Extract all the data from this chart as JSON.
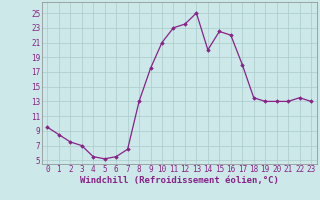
{
  "x": [
    0,
    1,
    2,
    3,
    4,
    5,
    6,
    7,
    8,
    9,
    10,
    11,
    12,
    13,
    14,
    15,
    16,
    17,
    18,
    19,
    20,
    21,
    22,
    23
  ],
  "y": [
    9.5,
    8.5,
    7.5,
    7.0,
    5.5,
    5.2,
    5.5,
    6.5,
    13.0,
    17.5,
    21.0,
    23.0,
    23.5,
    25.0,
    20.0,
    22.5,
    22.0,
    18.0,
    13.5,
    13.0,
    13.0,
    13.0,
    13.5,
    13.0
  ],
  "line_color": "#882288",
  "marker": "D",
  "markersize": 1.8,
  "linewidth": 0.9,
  "xlabel": "Windchill (Refroidissement éolien,°C)",
  "xlabel_fontsize": 6.5,
  "yticks": [
    5,
    7,
    9,
    11,
    13,
    15,
    17,
    19,
    21,
    23,
    25
  ],
  "xticks": [
    0,
    1,
    2,
    3,
    4,
    5,
    6,
    7,
    8,
    9,
    10,
    11,
    12,
    13,
    14,
    15,
    16,
    17,
    18,
    19,
    20,
    21,
    22,
    23
  ],
  "ylim": [
    4.5,
    26.5
  ],
  "xlim": [
    -0.5,
    23.5
  ],
  "bg_color": "#cce8e8",
  "grid_color": "#aacccc",
  "tick_color": "#882288",
  "tick_fontsize": 5.5,
  "spine_color": "#888888"
}
